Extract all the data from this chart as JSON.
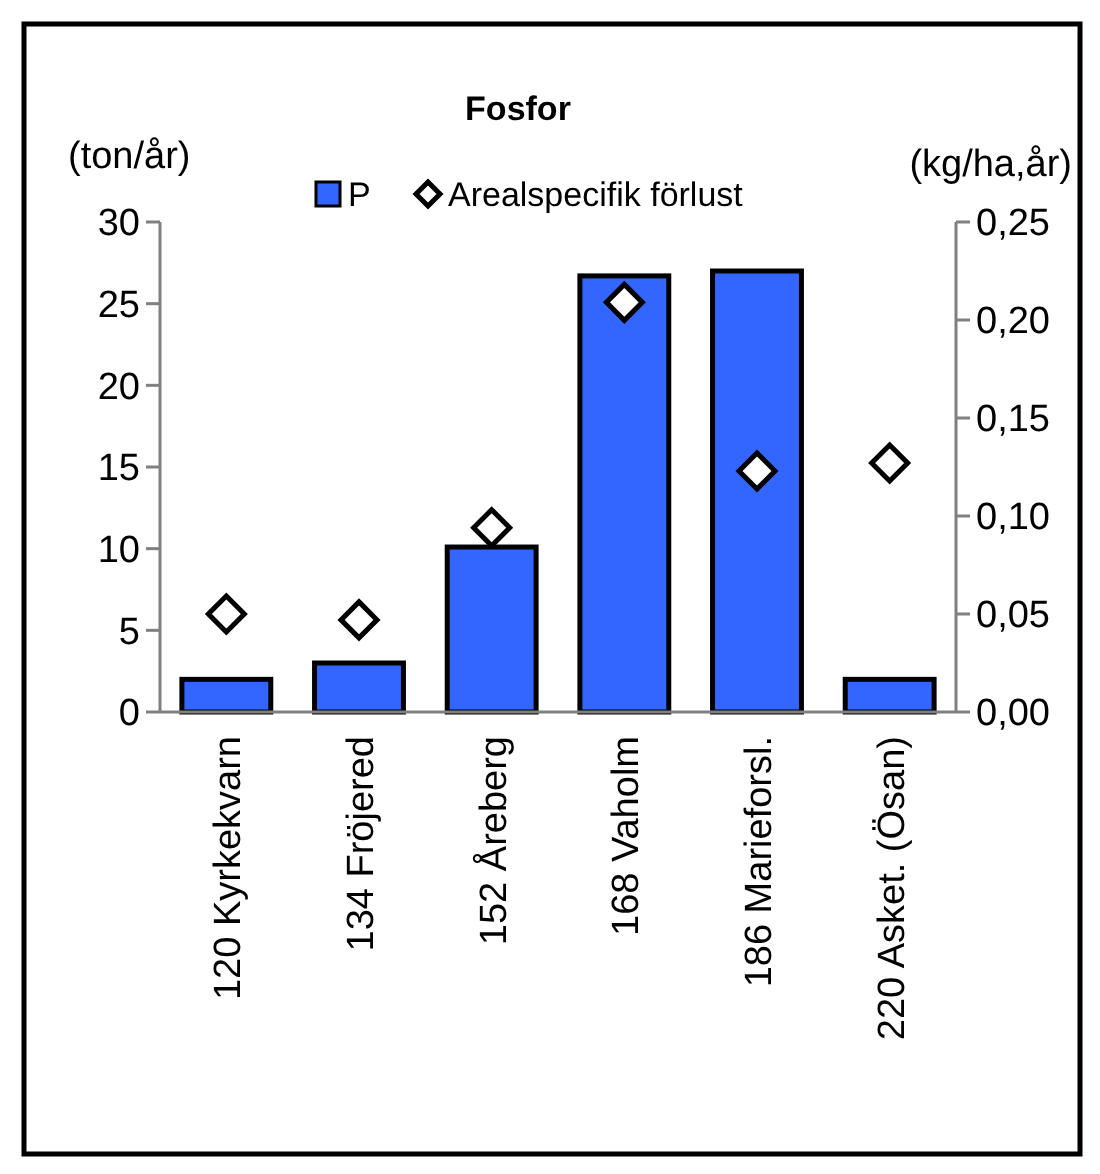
{
  "chart_data": {
    "type": "bar",
    "title": "Fosfor",
    "ylabel": "(ton/år)",
    "y2label": "(kg/ha,år)",
    "categories": [
      "120 Kyrkekvarn",
      "134 Fröjered",
      "152 Åreberg",
      "168 Vaholm",
      "186 Marieforsl.",
      "220 Asket. (Ösan)"
    ],
    "series": [
      {
        "name": "P",
        "color": "#3366ff",
        "values": [
          2.0,
          3.0,
          10.1,
          26.7,
          27.0,
          2.0
        ]
      },
      {
        "name": "Arealspecifik förlust",
        "type": "scatter",
        "axis": "y2",
        "color": "#ffffff",
        "marker": "diamond",
        "values": [
          0.05,
          0.047,
          0.094,
          0.209,
          0.123,
          0.127
        ]
      }
    ],
    "ylim": [
      0,
      30
    ],
    "yticks": [
      0,
      5,
      10,
      15,
      20,
      25,
      30
    ],
    "y2lim": [
      0,
      0.25
    ],
    "y2ticks": [
      {
        "value": 0,
        "label": "0,00"
      },
      {
        "value": 0.05,
        "label": "0,05"
      },
      {
        "value": 0.1,
        "label": "0,10"
      },
      {
        "value": 0.15,
        "label": "0,15"
      },
      {
        "value": 0.2,
        "label": "0,20"
      },
      {
        "value": 0.25,
        "label": "0,25"
      }
    ],
    "grid": false,
    "legend": "top"
  }
}
